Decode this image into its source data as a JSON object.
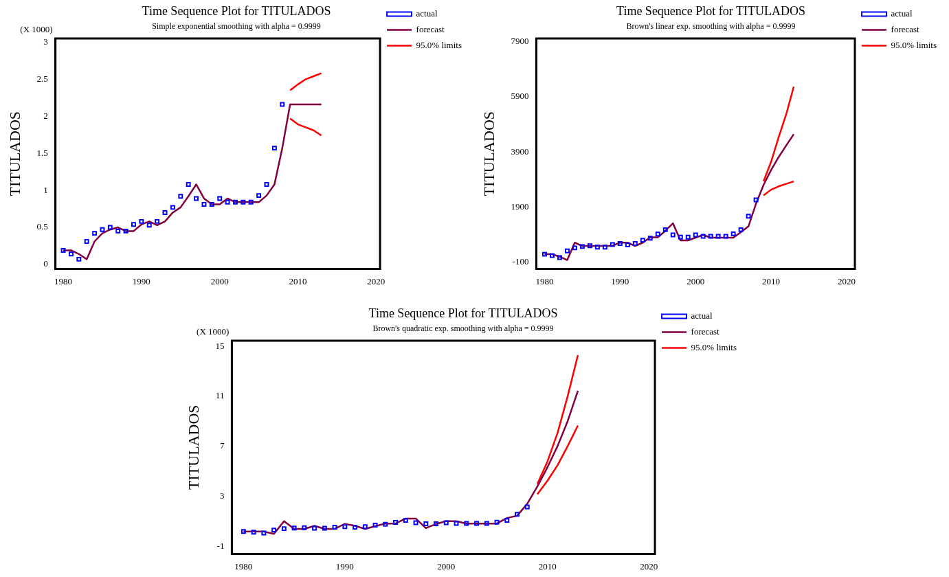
{
  "chart_data": [
    {
      "type": "line",
      "title": "Time Sequence Plot for TITULADOS",
      "subtitle": "Simple exponential smoothing with alpha = 0.9999",
      "ylabel": "TITULADOS",
      "annotations": [
        "(X 1000)"
      ],
      "xlim": [
        1979,
        2020.5
      ],
      "xticks": [
        1980,
        1990,
        2000,
        2010,
        2020
      ],
      "ylim": [
        -0.06,
        3.05
      ],
      "yticks": [
        0,
        0.5,
        1,
        1.5,
        2,
        2.5,
        3
      ],
      "grid": false,
      "legend": "right",
      "series": [
        {
          "name": "actual",
          "type": "scatter",
          "marker": "square",
          "color": "#0000ff",
          "x": [
            1980,
            1981,
            1982,
            1983,
            1984,
            1985,
            1986,
            1987,
            1988,
            1989,
            1990,
            1991,
            1992,
            1993,
            1994,
            1995,
            1996,
            1997,
            1998,
            1999,
            2000,
            2001,
            2002,
            2003,
            2004,
            2005,
            2006,
            2007,
            2008
          ],
          "values": [
            0.19,
            0.14,
            0.07,
            0.31,
            0.42,
            0.47,
            0.5,
            0.45,
            0.45,
            0.54,
            0.58,
            0.53,
            0.58,
            0.7,
            0.77,
            0.92,
            1.08,
            0.89,
            0.81,
            0.81,
            0.89,
            0.84,
            0.84,
            0.84,
            0.84,
            0.93,
            1.08,
            1.57,
            2.16
          ]
        },
        {
          "name": "forecast",
          "type": "line",
          "color": "#800040",
          "x": [
            1980,
            1981,
            1982,
            1983,
            1984,
            1985,
            1986,
            1987,
            1988,
            1989,
            1990,
            1991,
            1992,
            1993,
            1994,
            1995,
            1996,
            1997,
            1998,
            1999,
            2000,
            2001,
            2002,
            2003,
            2004,
            2005,
            2006,
            2007,
            2008,
            2009,
            2010,
            2011,
            2012,
            2013
          ],
          "values": [
            0.19,
            0.19,
            0.14,
            0.07,
            0.31,
            0.42,
            0.47,
            0.5,
            0.45,
            0.45,
            0.54,
            0.58,
            0.53,
            0.58,
            0.7,
            0.77,
            0.92,
            1.08,
            0.89,
            0.81,
            0.81,
            0.89,
            0.84,
            0.84,
            0.84,
            0.84,
            0.93,
            1.08,
            1.57,
            2.16,
            2.16,
            2.16,
            2.16,
            2.16
          ]
        },
        {
          "name": "95.0% limits",
          "type": "line",
          "color": "#ff0000",
          "x": [
            2009,
            2010,
            2011,
            2012,
            2013
          ],
          "values": [
            2.35,
            2.43,
            2.5,
            2.54,
            2.58
          ]
        },
        {
          "type": "line",
          "color": "#ff0000",
          "x": [
            2009,
            2010,
            2011,
            2012,
            2013
          ],
          "values": [
            1.97,
            1.89,
            1.85,
            1.81,
            1.74
          ]
        }
      ]
    },
    {
      "type": "line",
      "title": "Time Sequence Plot for TITULADOS",
      "subtitle": "Brown's linear exp. smoothing with alpha = 0.9999",
      "ylabel": "TITULADOS",
      "xlim": [
        1978.9,
        2021.1
      ],
      "xticks": [
        1980,
        1990,
        2000,
        2010,
        2020
      ],
      "ylim": [
        -340,
        8010
      ],
      "yticks": [
        -100,
        1900,
        3900,
        5900,
        7900
      ],
      "grid": false,
      "legend": "right",
      "series": [
        {
          "name": "actual",
          "type": "scatter",
          "marker": "square",
          "color": "#0000ff",
          "x": [
            1980,
            1981,
            1982,
            1983,
            1984,
            1985,
            1986,
            1987,
            1988,
            1989,
            1990,
            1991,
            1992,
            1993,
            1994,
            1995,
            1996,
            1997,
            1998,
            1999,
            2000,
            2001,
            2002,
            2003,
            2004,
            2005,
            2006,
            2007,
            2008
          ],
          "values": [
            190,
            140,
            70,
            310,
            420,
            470,
            500,
            450,
            450,
            540,
            580,
            530,
            580,
            700,
            770,
            920,
            1080,
            890,
            810,
            810,
            890,
            840,
            840,
            840,
            840,
            930,
            1080,
            1570,
            2160
          ]
        },
        {
          "name": "forecast",
          "type": "line",
          "color": "#800040",
          "x": [
            1980,
            1981,
            1982,
            1983,
            1984,
            1985,
            1986,
            1987,
            1988,
            1989,
            1990,
            1991,
            1992,
            1993,
            1994,
            1995,
            1996,
            1997,
            1998,
            1999,
            2000,
            2001,
            2002,
            2003,
            2004,
            2005,
            2006,
            2007,
            2008,
            2009,
            2010,
            2011,
            2012,
            2013
          ],
          "values": [
            190,
            190,
            100,
            -20,
            610,
            490,
            490,
            490,
            490,
            500,
            610,
            610,
            490,
            610,
            800,
            800,
            1040,
            1310,
            690,
            690,
            790,
            890,
            790,
            790,
            790,
            790,
            990,
            1200,
            2020,
            2700,
            3240,
            3710,
            4130,
            4540
          ]
        },
        {
          "name": "95.0% limits",
          "type": "line",
          "color": "#ff0000",
          "x": [
            2009,
            2010,
            2011,
            2012,
            2013
          ],
          "values": [
            2830,
            3540,
            4430,
            5260,
            6260
          ]
        },
        {
          "type": "line",
          "color": "#ff0000",
          "x": [
            2009,
            2010,
            2011,
            2012,
            2013
          ],
          "values": [
            2320,
            2530,
            2650,
            2740,
            2830
          ]
        }
      ]
    },
    {
      "type": "line",
      "title": "Time Sequence Plot for TITULADOS",
      "subtitle": "Brown's quadratic exp. smoothing with alpha = 0.9999",
      "ylabel": "TITULADOS",
      "annotations": [
        "(X 1000)"
      ],
      "xlim": [
        1978.85,
        2020.6
      ],
      "xticks": [
        1980,
        1990,
        2000,
        2010,
        2020
      ],
      "ylim": [
        -1.6,
        15.45
      ],
      "yticks": [
        -1,
        3,
        7,
        11,
        15
      ],
      "grid": false,
      "legend": "right",
      "series": [
        {
          "name": "actual",
          "type": "scatter",
          "marker": "square",
          "color": "#0000ff",
          "x": [
            1980,
            1981,
            1982,
            1983,
            1984,
            1985,
            1986,
            1987,
            1988,
            1989,
            1990,
            1991,
            1992,
            1993,
            1994,
            1995,
            1996,
            1997,
            1998,
            1999,
            2000,
            2001,
            2002,
            2003,
            2004,
            2005,
            2006,
            2007,
            2008
          ],
          "values": [
            0.19,
            0.14,
            0.07,
            0.31,
            0.42,
            0.47,
            0.5,
            0.45,
            0.45,
            0.54,
            0.58,
            0.53,
            0.58,
            0.7,
            0.77,
            0.92,
            1.08,
            0.89,
            0.81,
            0.81,
            0.89,
            0.84,
            0.84,
            0.84,
            0.84,
            0.93,
            1.08,
            1.57,
            2.16
          ]
        },
        {
          "name": "forecast",
          "type": "line",
          "color": "#800040",
          "x": [
            1980,
            1981,
            1982,
            1983,
            1984,
            1985,
            1986,
            1987,
            1988,
            1989,
            1990,
            1991,
            1992,
            1993,
            1994,
            1995,
            1996,
            1997,
            1998,
            1999,
            2000,
            2001,
            2002,
            2003,
            2004,
            2005,
            2006,
            2007,
            2008,
            2009,
            2010,
            2011,
            2012,
            2013
          ],
          "values": [
            0.19,
            0.19,
            0.19,
            0.0,
            1.02,
            0.4,
            0.4,
            0.65,
            0.4,
            0.4,
            0.8,
            0.65,
            0.4,
            0.62,
            0.83,
            0.83,
            1.23,
            1.23,
            0.46,
            0.8,
            1.02,
            1.02,
            0.83,
            0.83,
            0.83,
            0.83,
            1.27,
            1.45,
            2.41,
            3.8,
            5.34,
            7.04,
            9.04,
            11.45
          ]
        },
        {
          "name": "95.0% limits",
          "type": "line",
          "color": "#ff0000",
          "x": [
            2009,
            2010,
            2011,
            2012,
            2013
          ],
          "values": [
            4.0,
            5.8,
            8.1,
            11.05,
            14.3
          ]
        },
        {
          "type": "line",
          "color": "#ff0000",
          "x": [
            2009,
            2010,
            2011,
            2012,
            2013
          ],
          "values": [
            3.18,
            4.26,
            5.5,
            7.04,
            8.67
          ]
        }
      ]
    }
  ]
}
